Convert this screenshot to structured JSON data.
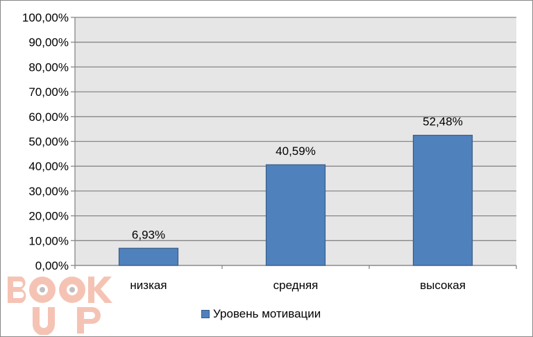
{
  "chart_data": {
    "type": "bar",
    "categories": [
      "низкая",
      "средняя",
      "высокая"
    ],
    "series": [
      {
        "name": "Уровень мотивации",
        "values": [
          6.93,
          40.59,
          52.48
        ]
      }
    ],
    "data_labels": [
      "6,93%",
      "40,59%",
      "52,48%"
    ],
    "yticks": [
      "0,00%",
      "10,00%",
      "20,00%",
      "30,00%",
      "40,00%",
      "50,00%",
      "60,00%",
      "70,00%",
      "80,00%",
      "90,00%",
      "100,00%"
    ],
    "ylim": [
      0,
      100
    ],
    "grid": true,
    "legend_position": "bottom",
    "colors": {
      "bar": "#4f81bd",
      "bar_border": "#385d8a",
      "plot_bg": "#e6e6e6",
      "grid": "#868686"
    }
  },
  "watermark": {
    "text_top": "BOOK",
    "text_bottom": "UP",
    "color": "#f4b9a8"
  }
}
